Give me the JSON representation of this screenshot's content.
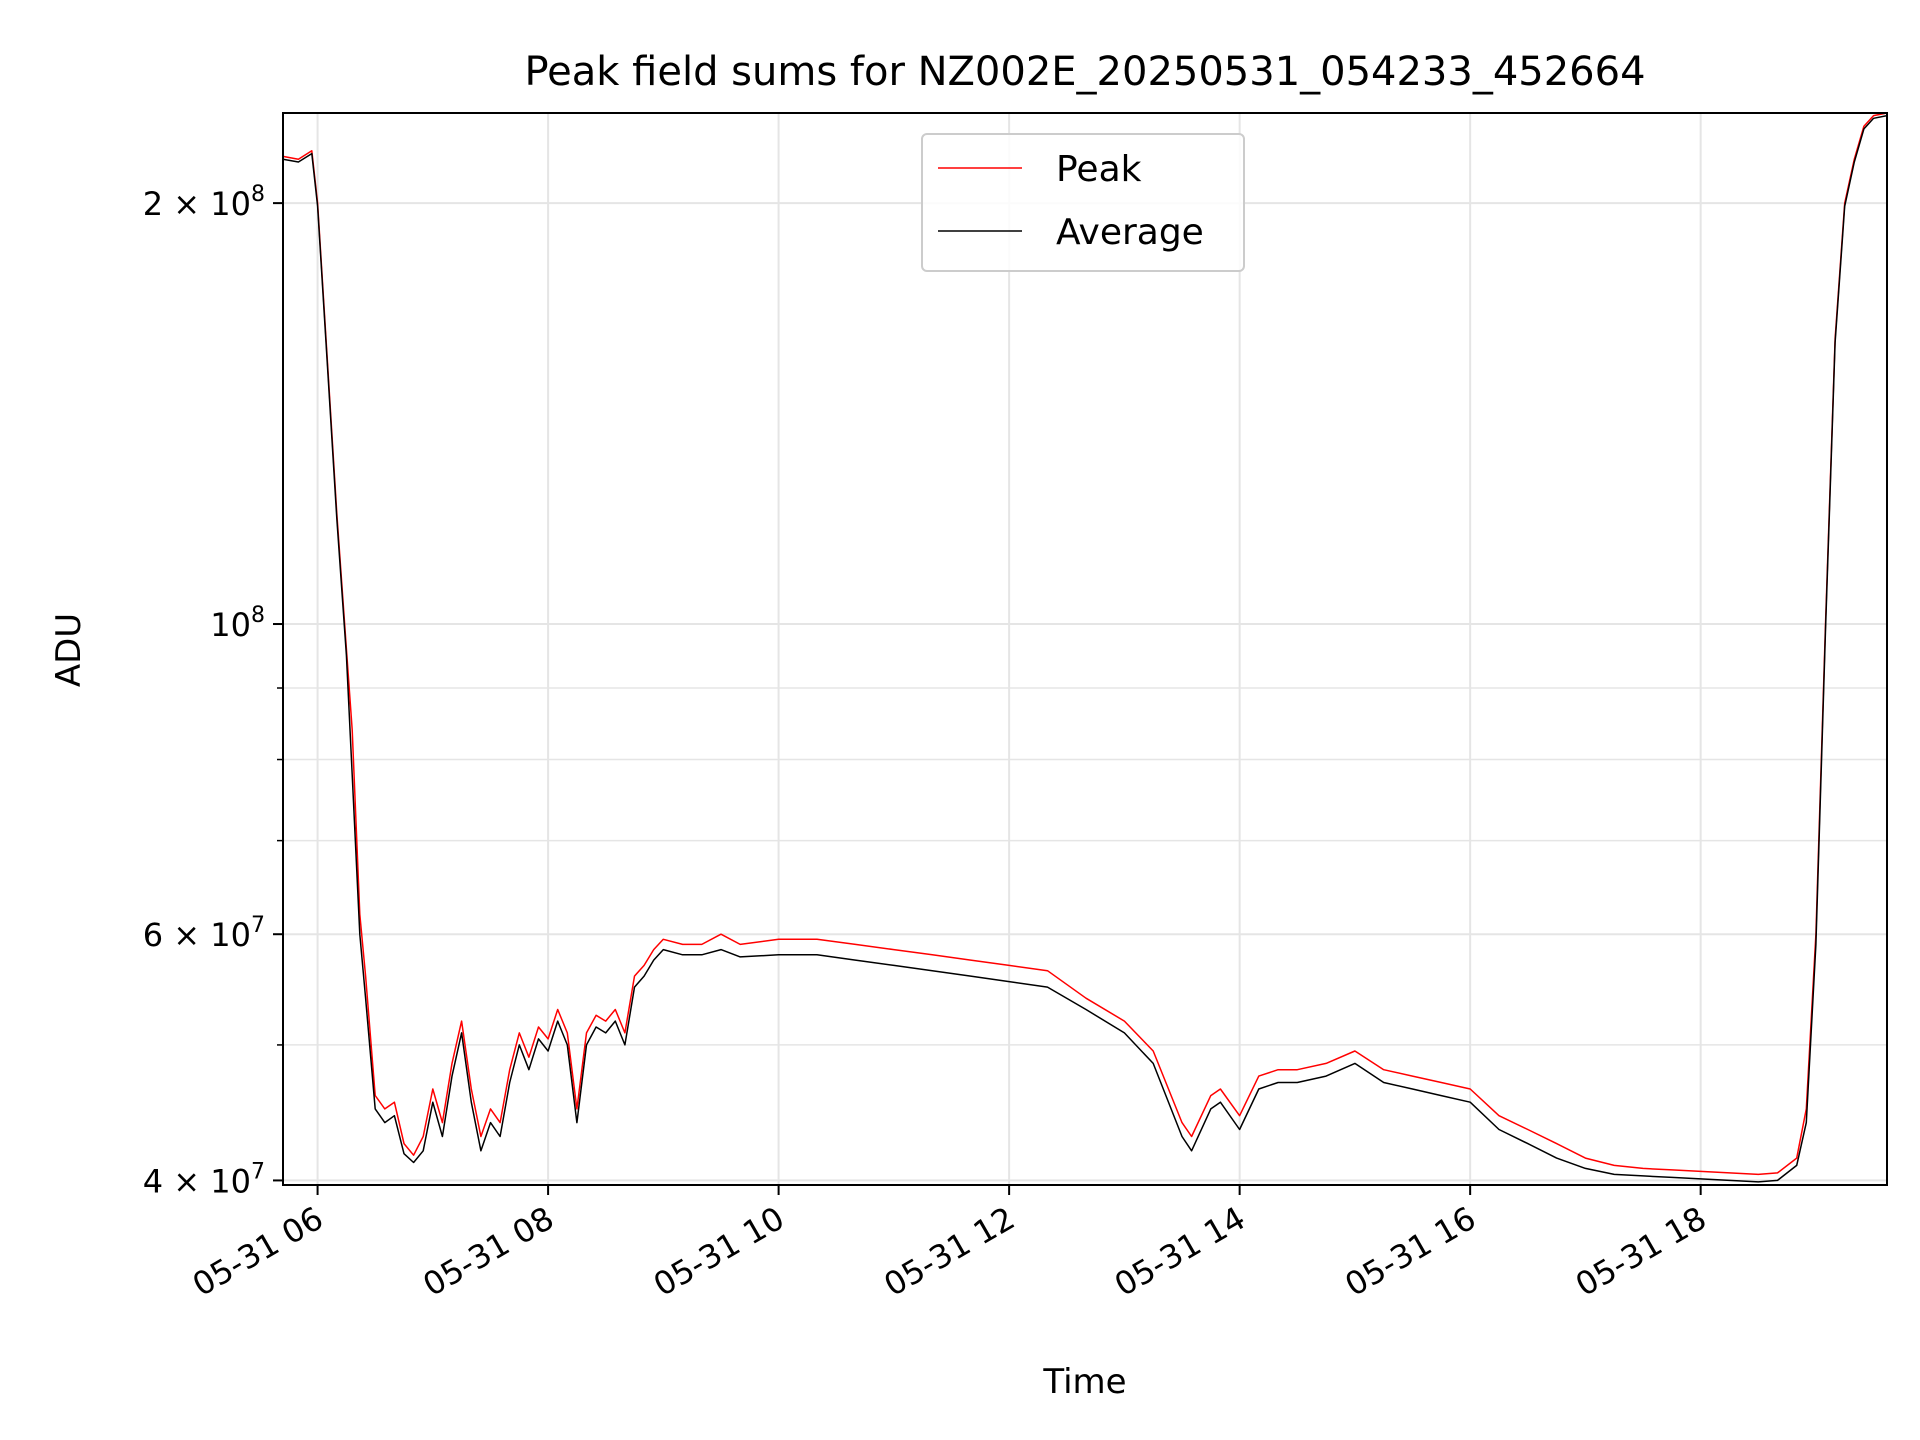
{
  "chart_data": {
    "type": "line",
    "title": "Peak field sums for NZ002E_20250531_054233_452664",
    "xlabel": "Time",
    "ylabel": "ADU",
    "y_scale": "log",
    "grid": true,
    "legend_position": "top-center",
    "xlim": [
      "2025-05-31T05:42",
      "2025-05-31T19:37"
    ],
    "ylim": [
      39700000,
      232000000
    ],
    "x_ticks": [
      {
        "value": "2025-05-31T06:00",
        "label": "05-31 06"
      },
      {
        "value": "2025-05-31T08:00",
        "label": "05-31 08"
      },
      {
        "value": "2025-05-31T10:00",
        "label": "05-31 10"
      },
      {
        "value": "2025-05-31T12:00",
        "label": "05-31 12"
      },
      {
        "value": "2025-05-31T14:00",
        "label": "05-31 14"
      },
      {
        "value": "2025-05-31T16:00",
        "label": "05-31 16"
      },
      {
        "value": "2025-05-31T18:00",
        "label": "05-31 18"
      }
    ],
    "y_ticks_major": [
      {
        "value": 40000000,
        "base": "4",
        "exp": "7",
        "label": "4×10^7"
      },
      {
        "value": 60000000,
        "base": "6",
        "exp": "7",
        "label": "6×10^7"
      },
      {
        "value": 100000000,
        "base": "",
        "exp": "8",
        "label": "10^8"
      },
      {
        "value": 200000000,
        "base": "2",
        "exp": "8",
        "label": "2×10^8"
      }
    ],
    "y_ticks_minor": [
      50000000,
      70000000,
      80000000,
      90000000
    ],
    "series": [
      {
        "name": "Peak",
        "color": "#ff0000",
        "x": [
          "2025-05-31T05:42",
          "2025-05-31T05:50",
          "2025-05-31T05:57",
          "2025-05-31T06:00",
          "2025-05-31T06:05",
          "2025-05-31T06:10",
          "2025-05-31T06:15",
          "2025-05-31T06:18",
          "2025-05-31T06:22",
          "2025-05-31T06:25",
          "2025-05-31T06:30",
          "2025-05-31T06:35",
          "2025-05-31T06:40",
          "2025-05-31T06:45",
          "2025-05-31T06:50",
          "2025-05-31T06:55",
          "2025-05-31T07:00",
          "2025-05-31T07:05",
          "2025-05-31T07:10",
          "2025-05-31T07:15",
          "2025-05-31T07:20",
          "2025-05-31T07:25",
          "2025-05-31T07:30",
          "2025-05-31T07:35",
          "2025-05-31T07:40",
          "2025-05-31T07:45",
          "2025-05-31T07:50",
          "2025-05-31T07:55",
          "2025-05-31T08:00",
          "2025-05-31T08:05",
          "2025-05-31T08:10",
          "2025-05-31T08:15",
          "2025-05-31T08:20",
          "2025-05-31T08:25",
          "2025-05-31T08:30",
          "2025-05-31T08:35",
          "2025-05-31T08:40",
          "2025-05-31T08:45",
          "2025-05-31T08:50",
          "2025-05-31T08:55",
          "2025-05-31T09:00",
          "2025-05-31T09:10",
          "2025-05-31T09:20",
          "2025-05-31T09:30",
          "2025-05-31T09:40",
          "2025-05-31T10:00",
          "2025-05-31T10:20",
          "2025-05-31T10:40",
          "2025-05-31T11:00",
          "2025-05-31T11:20",
          "2025-05-31T11:40",
          "2025-05-31T12:00",
          "2025-05-31T12:20",
          "2025-05-31T12:40",
          "2025-05-31T13:00",
          "2025-05-31T13:15",
          "2025-05-31T13:30",
          "2025-05-31T13:35",
          "2025-05-31T13:45",
          "2025-05-31T13:50",
          "2025-05-31T14:00",
          "2025-05-31T14:10",
          "2025-05-31T14:20",
          "2025-05-31T14:30",
          "2025-05-31T14:45",
          "2025-05-31T15:00",
          "2025-05-31T15:15",
          "2025-05-31T15:30",
          "2025-05-31T15:45",
          "2025-05-31T16:00",
          "2025-05-31T16:15",
          "2025-05-31T16:30",
          "2025-05-31T16:45",
          "2025-05-31T17:00",
          "2025-05-31T17:15",
          "2025-05-31T17:30",
          "2025-05-31T17:45",
          "2025-05-31T18:00",
          "2025-05-31T18:15",
          "2025-05-31T18:30",
          "2025-05-31T18:40",
          "2025-05-31T18:50",
          "2025-05-31T18:55",
          "2025-05-31T19:00",
          "2025-05-31T19:05",
          "2025-05-31T19:10",
          "2025-05-31T19:15",
          "2025-05-31T19:20",
          "2025-05-31T19:25",
          "2025-05-31T19:30",
          "2025-05-31T19:37"
        ],
        "values": [
          216000000,
          215000000,
          218000000,
          200000000,
          155000000,
          120000000,
          96000000,
          84000000,
          62000000,
          56000000,
          46000000,
          45000000,
          45500000,
          42500000,
          41700000,
          43000000,
          46500000,
          44000000,
          48500000,
          52000000,
          46500000,
          43000000,
          45000000,
          44000000,
          48000000,
          51000000,
          49000000,
          51500000,
          50500000,
          53000000,
          51000000,
          45000000,
          51000000,
          52500000,
          52000000,
          53000000,
          51000000,
          56000000,
          57000000,
          58500000,
          59500000,
          59000000,
          59000000,
          60000000,
          59000000,
          59500000,
          59500000,
          59000000,
          58500000,
          58000000,
          57500000,
          57000000,
          56500000,
          54000000,
          52000000,
          49500000,
          44000000,
          43000000,
          46000000,
          46500000,
          44500000,
          47500000,
          48000000,
          48000000,
          48500000,
          49500000,
          48000000,
          47500000,
          47000000,
          46500000,
          44500000,
          43500000,
          42500000,
          41500000,
          41000000,
          40800000,
          40700000,
          40600000,
          40500000,
          40400000,
          40500000,
          41500000,
          45000000,
          60000000,
          100000000,
          160000000,
          200000000,
          215000000,
          227000000,
          231000000,
          232000000
        ]
      },
      {
        "name": "Average",
        "color": "#000000",
        "x": [
          "2025-05-31T05:42",
          "2025-05-31T05:50",
          "2025-05-31T05:57",
          "2025-05-31T06:00",
          "2025-05-31T06:05",
          "2025-05-31T06:10",
          "2025-05-31T06:15",
          "2025-05-31T06:18",
          "2025-05-31T06:22",
          "2025-05-31T06:25",
          "2025-05-31T06:30",
          "2025-05-31T06:35",
          "2025-05-31T06:40",
          "2025-05-31T06:45",
          "2025-05-31T06:50",
          "2025-05-31T06:55",
          "2025-05-31T07:00",
          "2025-05-31T07:05",
          "2025-05-31T07:10",
          "2025-05-31T07:15",
          "2025-05-31T07:20",
          "2025-05-31T07:25",
          "2025-05-31T07:30",
          "2025-05-31T07:35",
          "2025-05-31T07:40",
          "2025-05-31T07:45",
          "2025-05-31T07:50",
          "2025-05-31T07:55",
          "2025-05-31T08:00",
          "2025-05-31T08:05",
          "2025-05-31T08:10",
          "2025-05-31T08:15",
          "2025-05-31T08:20",
          "2025-05-31T08:25",
          "2025-05-31T08:30",
          "2025-05-31T08:35",
          "2025-05-31T08:40",
          "2025-05-31T08:45",
          "2025-05-31T08:50",
          "2025-05-31T08:55",
          "2025-05-31T09:00",
          "2025-05-31T09:10",
          "2025-05-31T09:20",
          "2025-05-31T09:30",
          "2025-05-31T09:40",
          "2025-05-31T10:00",
          "2025-05-31T10:20",
          "2025-05-31T10:40",
          "2025-05-31T11:00",
          "2025-05-31T11:20",
          "2025-05-31T11:40",
          "2025-05-31T12:00",
          "2025-05-31T12:20",
          "2025-05-31T12:40",
          "2025-05-31T13:00",
          "2025-05-31T13:15",
          "2025-05-31T13:30",
          "2025-05-31T13:35",
          "2025-05-31T13:45",
          "2025-05-31T13:50",
          "2025-05-31T14:00",
          "2025-05-31T14:10",
          "2025-05-31T14:20",
          "2025-05-31T14:30",
          "2025-05-31T14:45",
          "2025-05-31T15:00",
          "2025-05-31T15:15",
          "2025-05-31T15:30",
          "2025-05-31T15:45",
          "2025-05-31T16:00",
          "2025-05-31T16:15",
          "2025-05-31T16:30",
          "2025-05-31T16:45",
          "2025-05-31T17:00",
          "2025-05-31T17:15",
          "2025-05-31T17:30",
          "2025-05-31T17:45",
          "2025-05-31T18:00",
          "2025-05-31T18:15",
          "2025-05-31T18:30",
          "2025-05-31T18:40",
          "2025-05-31T18:50",
          "2025-05-31T18:55",
          "2025-05-31T19:00",
          "2025-05-31T19:05",
          "2025-05-31T19:10",
          "2025-05-31T19:15",
          "2025-05-31T19:20",
          "2025-05-31T19:25",
          "2025-05-31T19:30",
          "2025-05-31T19:37"
        ],
        "values": [
          215000000,
          214000000,
          217000000,
          199000000,
          154000000,
          119000000,
          95000000,
          78000000,
          60000000,
          54000000,
          45000000,
          44000000,
          44500000,
          41800000,
          41200000,
          42000000,
          45500000,
          43000000,
          47500000,
          51000000,
          45500000,
          42000000,
          44000000,
          43000000,
          47000000,
          50000000,
          48000000,
          50500000,
          49500000,
          52000000,
          50000000,
          44000000,
          50000000,
          51500000,
          51000000,
          52000000,
          50000000,
          55000000,
          56000000,
          57500000,
          58500000,
          58000000,
          58000000,
          58500000,
          57800000,
          58000000,
          58000000,
          57500000,
          57000000,
          56500000,
          56000000,
          55500000,
          55000000,
          53000000,
          51000000,
          48500000,
          43000000,
          42000000,
          45000000,
          45500000,
          43500000,
          46500000,
          47000000,
          47000000,
          47500000,
          48500000,
          47000000,
          46500000,
          46000000,
          45500000,
          43500000,
          42500000,
          41500000,
          40800000,
          40400000,
          40300000,
          40200000,
          40100000,
          40000000,
          39900000,
          40000000,
          41000000,
          44000000,
          59000000,
          99000000,
          159000000,
          199000000,
          214000000,
          226000000,
          230000000,
          231000000
        ]
      }
    ]
  }
}
